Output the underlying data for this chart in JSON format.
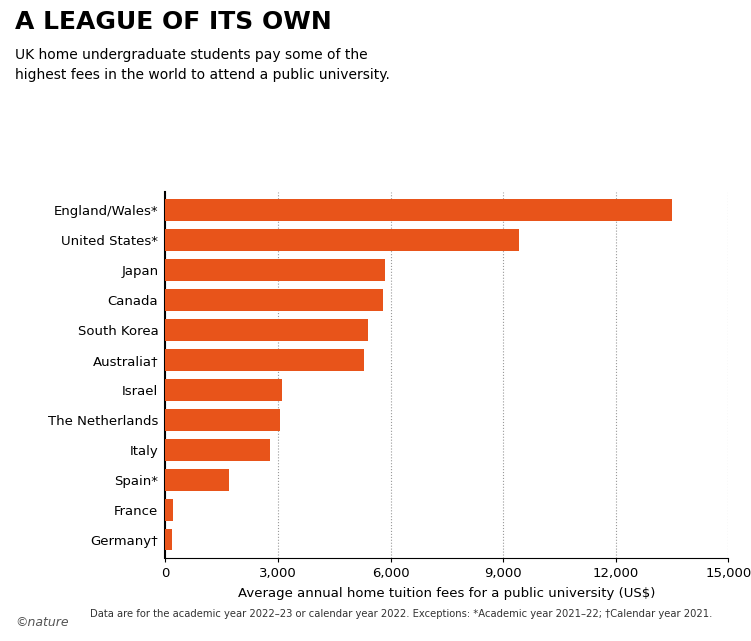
{
  "title": "A LEAGUE OF ITS OWN",
  "subtitle": "UK home undergraduate students pay some of the\nhighest fees in the world to attend a public university.",
  "categories": [
    "England/Wales*",
    "United States*",
    "Japan",
    "Canada",
    "South Korea",
    "Australia†",
    "Israel",
    "The Netherlands",
    "Italy",
    "Spain*",
    "France",
    "Germany†"
  ],
  "values": [
    13500,
    9410,
    5860,
    5790,
    5400,
    5300,
    3100,
    3050,
    2800,
    1700,
    220,
    180
  ],
  "bar_color": "#E8541A",
  "xlabel": "Average annual home tuition fees for a public university (US$)",
  "footnote": "Data are for the academic year 2022–23 or calendar year 2022. Exceptions: *Academic year 2021–22; †Calendar year 2021.",
  "nature_text": "©nature",
  "xlim": [
    0,
    15000
  ],
  "xticks": [
    0,
    3000,
    6000,
    9000,
    12000,
    15000
  ],
  "xtick_labels": [
    "0",
    "3,000",
    "6,000",
    "9,000",
    "12,000",
    "15,000"
  ],
  "background_color": "#ffffff",
  "title_fontsize": 18,
  "subtitle_fontsize": 10,
  "bar_height": 0.72
}
